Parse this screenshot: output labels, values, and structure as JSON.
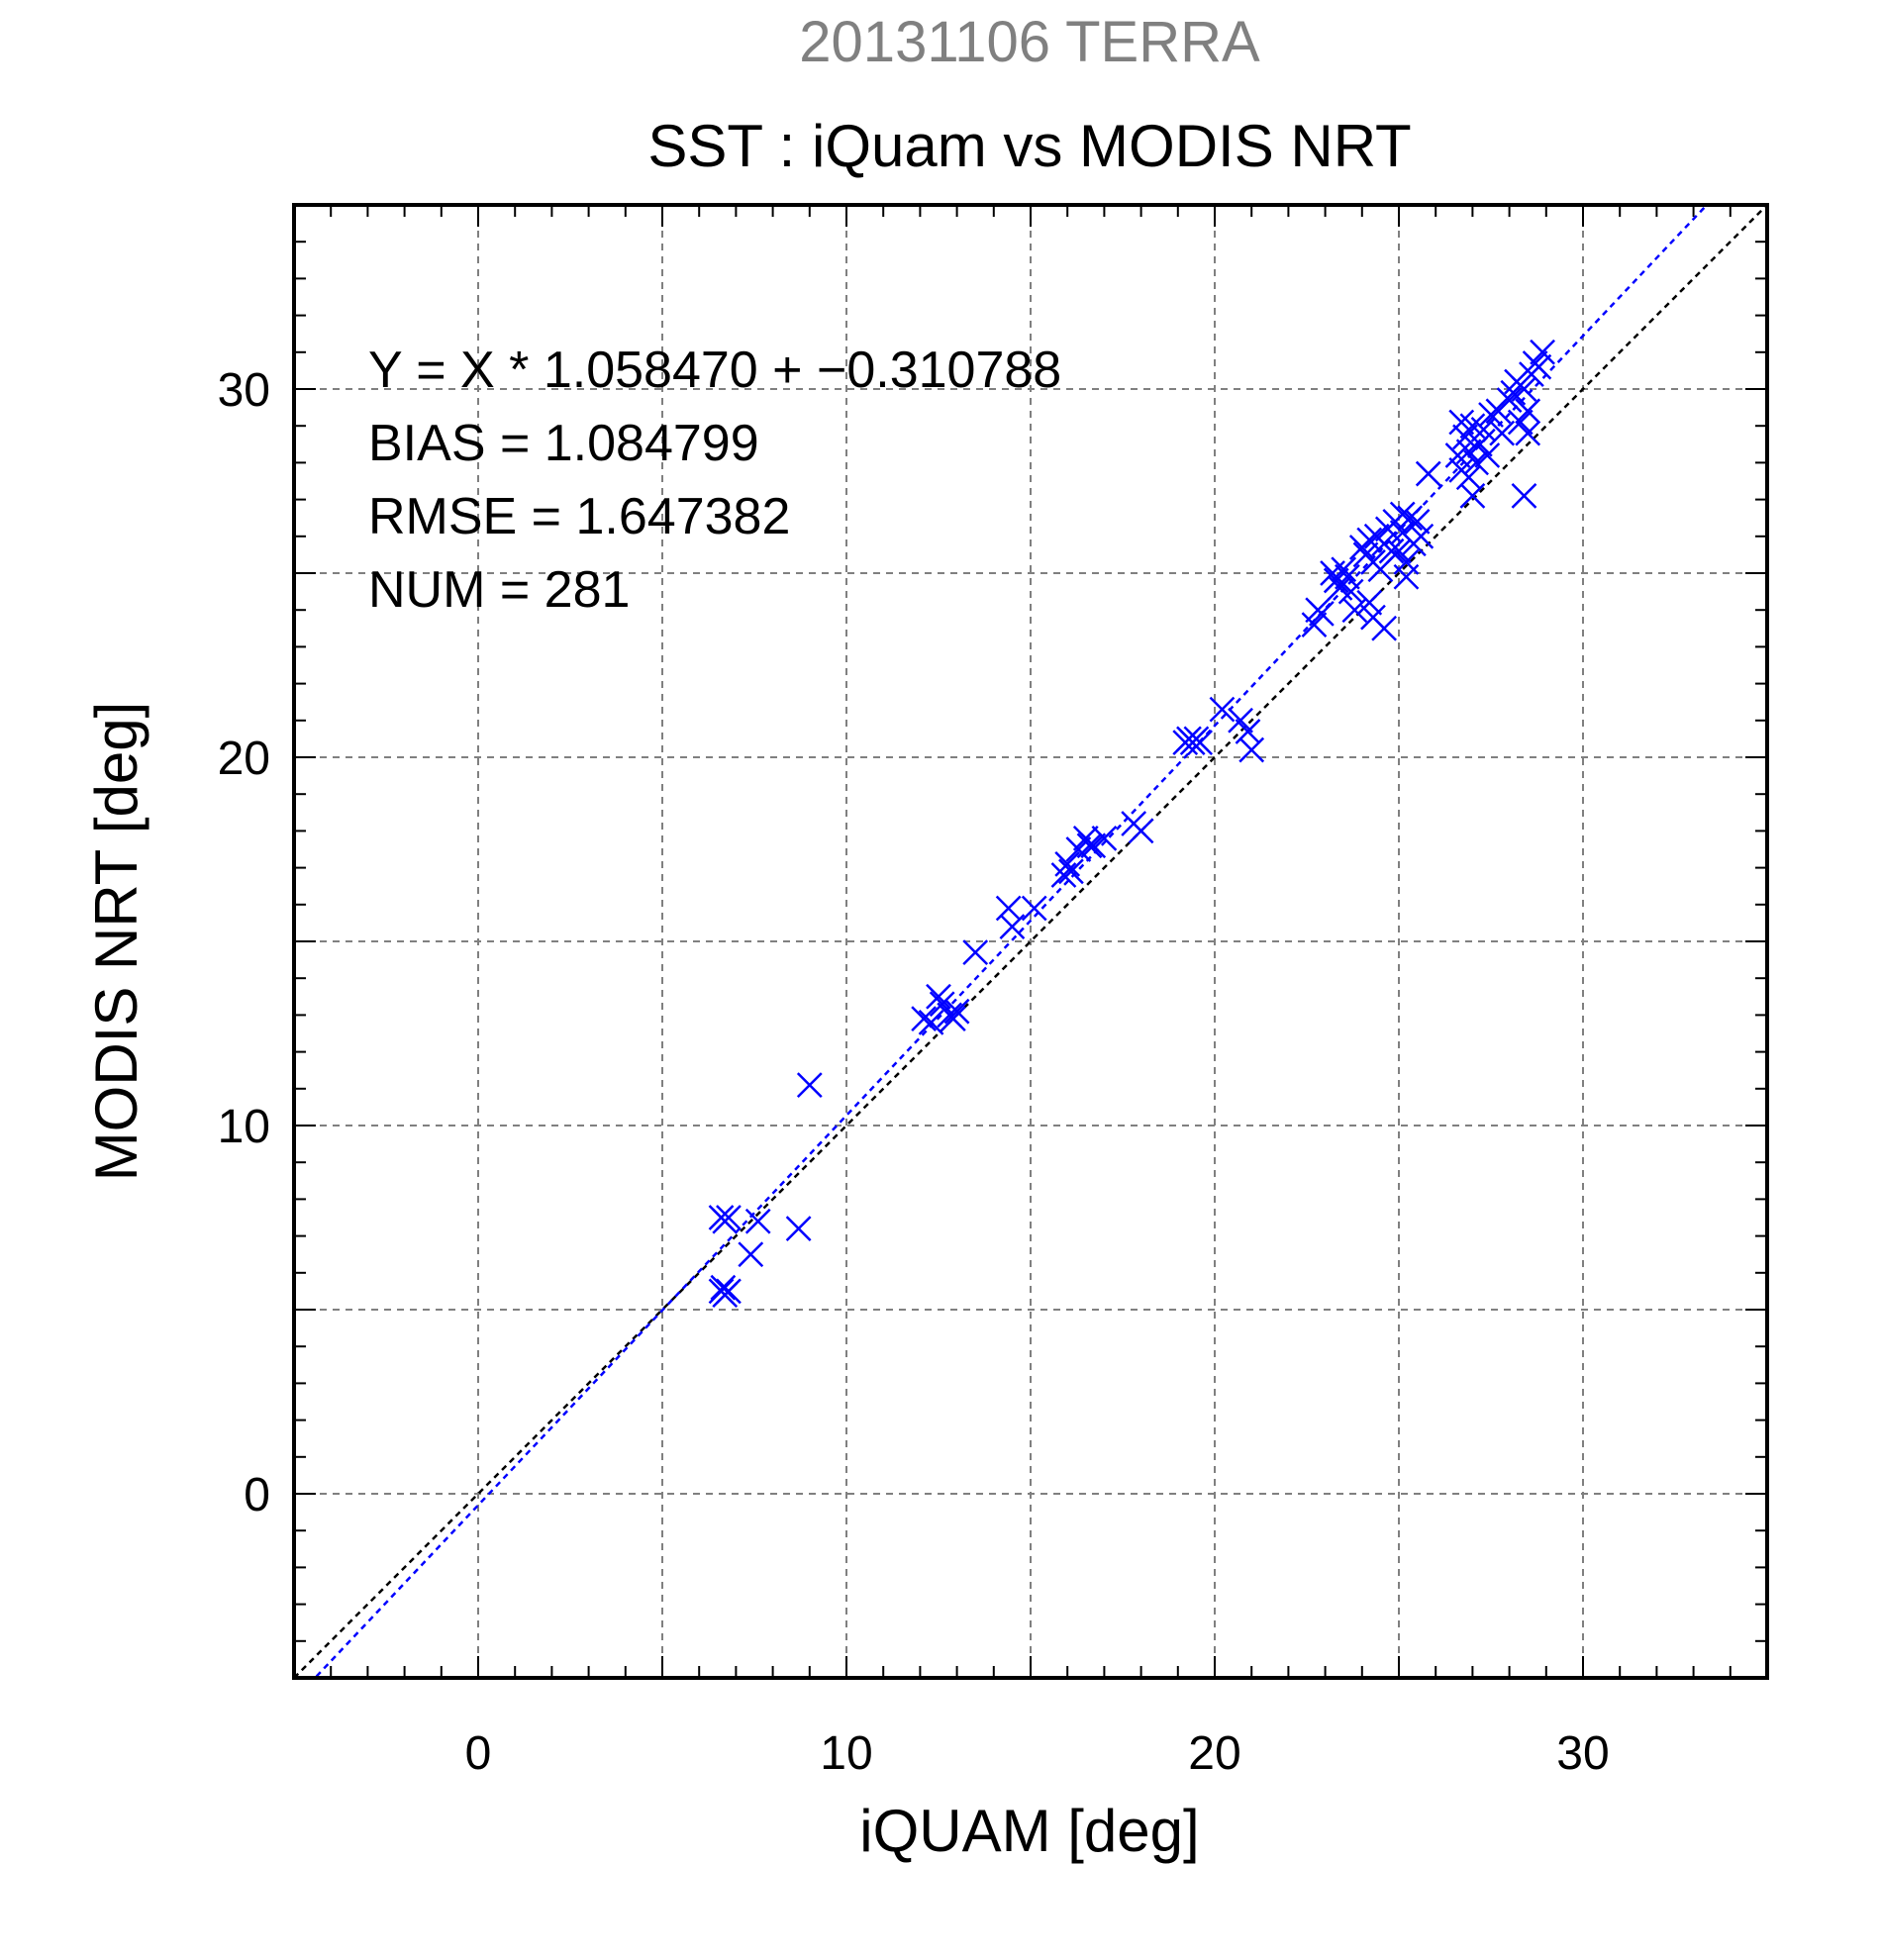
{
  "chart_data": {
    "type": "scatter",
    "title": "20131106 TERRA",
    "subtitle": "SST : iQuam vs MODIS NRT",
    "xlabel": "iQUAM [deg]",
    "ylabel": "MODIS NRT [deg]",
    "xlim": [
      -5,
      35
    ],
    "ylim": [
      -5,
      35
    ],
    "xticks": [
      0,
      10,
      20,
      30
    ],
    "yticks": [
      0,
      10,
      20,
      30
    ],
    "grid": true,
    "marker": "x",
    "colors": {
      "points": "#0000ff",
      "fit_line": "#0000ff",
      "identity_line": "#000000",
      "grid": "#808080"
    },
    "annotations": [
      "Y = X * 1.058470 + −0.310788",
      "BIAS = 1.084799",
      "RMSE = 1.647382",
      "NUM = 281"
    ],
    "fit": {
      "slope": 1.05847,
      "intercept": -0.310788
    },
    "identity": {
      "slope": 1,
      "intercept": 0
    },
    "series": [
      {
        "points": [
          [
            6.6,
            7.5
          ],
          [
            6.7,
            7.4
          ],
          [
            6.8,
            7.5
          ],
          [
            6.6,
            5.5
          ],
          [
            6.7,
            5.4
          ],
          [
            6.8,
            5.5
          ],
          [
            6.65,
            5.6
          ],
          [
            7.4,
            6.5
          ],
          [
            7.6,
            7.4
          ],
          [
            8.7,
            7.2
          ],
          [
            9.0,
            11.1
          ],
          [
            12.1,
            12.9
          ],
          [
            12.3,
            12.8
          ],
          [
            12.5,
            13.5
          ],
          [
            12.6,
            13.3
          ],
          [
            12.8,
            13.0
          ],
          [
            12.9,
            12.9
          ],
          [
            13.0,
            13.1
          ],
          [
            13.5,
            14.7
          ],
          [
            14.4,
            15.9
          ],
          [
            14.5,
            15.4
          ],
          [
            15.1,
            15.9
          ],
          [
            15.9,
            16.8
          ],
          [
            16.0,
            17.1
          ],
          [
            16.1,
            16.9
          ],
          [
            16.3,
            17.5
          ],
          [
            16.5,
            17.8
          ],
          [
            16.6,
            17.6
          ],
          [
            16.7,
            17.6
          ],
          [
            17.0,
            17.8
          ],
          [
            17.8,
            18.2
          ],
          [
            18.0,
            18.0
          ],
          [
            19.2,
            20.4
          ],
          [
            19.3,
            20.5
          ],
          [
            19.4,
            20.4
          ],
          [
            19.5,
            20.5
          ],
          [
            19.6,
            20.4
          ],
          [
            20.2,
            21.3
          ],
          [
            20.7,
            21.0
          ],
          [
            20.9,
            20.7
          ],
          [
            21.0,
            20.2
          ],
          [
            22.7,
            23.6
          ],
          [
            22.8,
            24.0
          ],
          [
            22.9,
            23.9
          ],
          [
            23.2,
            25.0
          ],
          [
            23.3,
            24.8
          ],
          [
            23.4,
            24.6
          ],
          [
            23.5,
            25.1
          ],
          [
            23.6,
            24.9
          ],
          [
            23.7,
            24.5
          ],
          [
            23.8,
            24.0
          ],
          [
            24.0,
            25.7
          ],
          [
            24.1,
            25.5
          ],
          [
            24.2,
            25.9
          ],
          [
            24.3,
            25.3
          ],
          [
            24.4,
            26.0
          ],
          [
            24.5,
            25.1
          ],
          [
            24.6,
            25.8
          ],
          [
            24.7,
            26.2
          ],
          [
            24.8,
            25.6
          ],
          [
            24.9,
            26.4
          ],
          [
            24.3,
            23.8
          ],
          [
            24.6,
            23.5
          ],
          [
            24.2,
            24.2
          ],
          [
            25.0,
            25.6
          ],
          [
            25.1,
            26.1
          ],
          [
            25.2,
            25.3
          ],
          [
            25.3,
            26.5
          ],
          [
            25.4,
            25.8
          ],
          [
            25.5,
            26.4
          ],
          [
            25.6,
            26.0
          ],
          [
            25.2,
            24.9
          ],
          [
            25.1,
            26.6
          ],
          [
            25.8,
            27.7
          ],
          [
            26.6,
            28.2
          ],
          [
            26.7,
            27.8
          ],
          [
            26.8,
            28.7
          ],
          [
            26.9,
            28.3
          ],
          [
            27.0,
            29.0
          ],
          [
            26.7,
            29.1
          ],
          [
            26.9,
            27.6
          ],
          [
            27.0,
            27.1
          ],
          [
            27.1,
            28.0
          ],
          [
            27.2,
            28.5
          ],
          [
            27.3,
            28.9
          ],
          [
            27.4,
            28.2
          ],
          [
            27.5,
            29.3
          ],
          [
            27.7,
            29.4
          ],
          [
            27.8,
            28.8
          ],
          [
            28.0,
            29.7
          ],
          [
            28.1,
            29.9
          ],
          [
            28.2,
            30.2
          ],
          [
            28.3,
            29.1
          ],
          [
            28.4,
            30.0
          ],
          [
            28.5,
            28.8
          ],
          [
            28.6,
            30.4
          ],
          [
            28.7,
            30.7
          ],
          [
            28.8,
            30.6
          ],
          [
            28.9,
            31.0
          ],
          [
            28.5,
            29.4
          ],
          [
            28.4,
            27.1
          ]
        ]
      }
    ]
  }
}
